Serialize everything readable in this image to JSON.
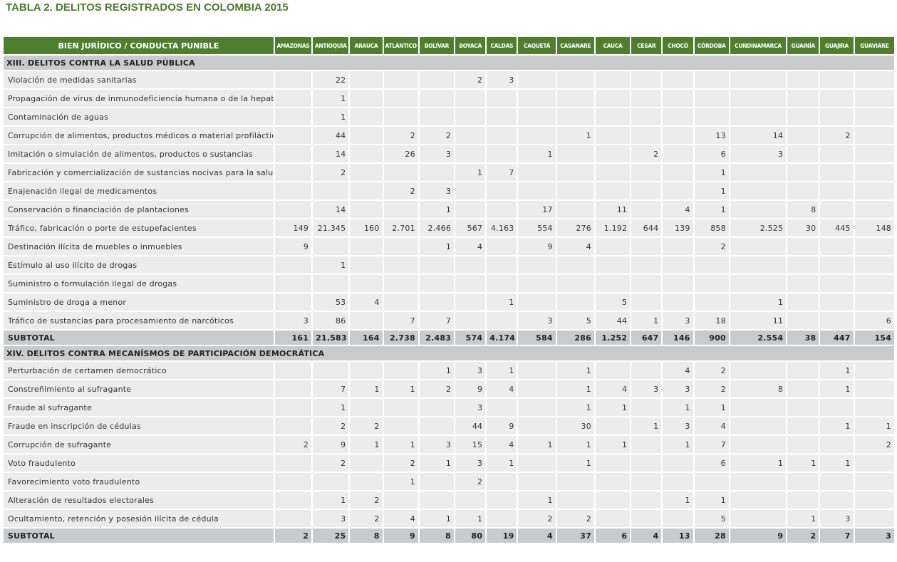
{
  "title": {
    "label": "TABLA 2.",
    "text": "DELITOS REGISTRADOS EN COLOMBIA 2015"
  },
  "table": {
    "header": [
      "BIEN JURÍDICO / CONDUCTA PUNIBLE",
      "AMAZONAS",
      "ANTIOQUIA",
      "ARAUCA",
      "ATLÁNTICO",
      "BOLÍVAR",
      "BOYACÁ",
      "CALDAS",
      "CAQUETÁ",
      "CASANARE",
      "CAUCA",
      "CESAR",
      "CHOCÓ",
      "CÓRDOBA",
      "CUNDINAMARCA",
      "GUAINÍA",
      "GUAJIRA",
      "GUAVIARE"
    ],
    "sections": [
      {
        "title": "XIII. DELITOS CONTRA LA SALUD PÚBLICA",
        "rows": [
          {
            "label": "Violación de medidas sanitarias",
            "values": [
              null,
              "22",
              null,
              null,
              null,
              "2",
              "3",
              null,
              null,
              null,
              null,
              null,
              null,
              null,
              null,
              null,
              null
            ]
          },
          {
            "label": "Propagación de virus de inmunodeficiencia humana o de la hepatitis B",
            "values": [
              null,
              "1",
              null,
              null,
              null,
              null,
              null,
              null,
              null,
              null,
              null,
              null,
              null,
              null,
              null,
              null,
              null
            ]
          },
          {
            "label": "Contaminación de aguas",
            "values": [
              null,
              "1",
              null,
              null,
              null,
              null,
              null,
              null,
              null,
              null,
              null,
              null,
              null,
              null,
              null,
              null,
              null
            ]
          },
          {
            "label": "Corrupción de alimentos, productos médicos o material profiláctico",
            "values": [
              null,
              "44",
              null,
              "2",
              "2",
              null,
              null,
              null,
              "1",
              null,
              null,
              null,
              "13",
              "14",
              null,
              "2",
              null
            ]
          },
          {
            "label": "Imitación o simulación de alimentos, productos o sustancias",
            "values": [
              null,
              "14",
              null,
              "26",
              "3",
              null,
              null,
              "1",
              null,
              null,
              "2",
              null,
              "6",
              "3",
              null,
              null,
              null
            ]
          },
          {
            "label": "Fabricación y comercialización de sustancias nocivas para la salud",
            "values": [
              null,
              "2",
              null,
              null,
              null,
              "1",
              "7",
              null,
              null,
              null,
              null,
              null,
              "1",
              null,
              null,
              null,
              null
            ]
          },
          {
            "label": "Enajenación ilegal de medicamentos",
            "values": [
              null,
              null,
              null,
              "2",
              "3",
              null,
              null,
              null,
              null,
              null,
              null,
              null,
              "1",
              null,
              null,
              null,
              null
            ]
          },
          {
            "label": "Conservación o financiación de plantaciones",
            "values": [
              null,
              "14",
              null,
              null,
              "1",
              null,
              null,
              "17",
              null,
              "11",
              null,
              "4",
              "1",
              null,
              "8",
              null,
              null
            ]
          },
          {
            "label": "Tráfico, fabricación o porte de estupefacientes",
            "values": [
              "149",
              "21.345",
              "160",
              "2.701",
              "2.466",
              "567",
              "4.163",
              "554",
              "276",
              "1.192",
              "644",
              "139",
              "858",
              "2.525",
              "30",
              "445",
              "148"
            ]
          },
          {
            "label": "Destinación ilícita de muebles o inmuebles",
            "values": [
              "9",
              null,
              null,
              null,
              "1",
              "4",
              null,
              "9",
              "4",
              null,
              null,
              null,
              "2",
              null,
              null,
              null,
              null
            ]
          },
          {
            "label": "Estímulo al uso ilícito de drogas",
            "values": [
              null,
              "1",
              null,
              null,
              null,
              null,
              null,
              null,
              null,
              null,
              null,
              null,
              null,
              null,
              null,
              null,
              null
            ]
          },
          {
            "label": "Suministro o formulación ilegal de drogas",
            "values": [
              null,
              null,
              null,
              null,
              null,
              null,
              null,
              null,
              null,
              null,
              null,
              null,
              null,
              null,
              null,
              null,
              null
            ]
          },
          {
            "label": "Suministro de droga a menor",
            "values": [
              null,
              "53",
              "4",
              null,
              null,
              null,
              "1",
              null,
              null,
              "5",
              null,
              null,
              null,
              "1",
              null,
              null,
              null
            ]
          },
          {
            "label": "Tráfico de sustancias para procesamiento de narcóticos",
            "values": [
              "3",
              "86",
              null,
              "7",
              "7",
              null,
              null,
              "3",
              "5",
              "44",
              "1",
              "3",
              "18",
              "11",
              null,
              null,
              "6"
            ]
          }
        ],
        "subtotal": {
          "label": "SUBTOTAL",
          "values": [
            "161",
            "21.583",
            "164",
            "2.738",
            "2.483",
            "574",
            "4.174",
            "584",
            "286",
            "1.252",
            "647",
            "146",
            "900",
            "2.554",
            "38",
            "447",
            "154"
          ]
        }
      },
      {
        "title": "XIV. DELITOS CONTRA MECANÍSMOS DE PARTICIPACIÓN DEMOCRÁTICA",
        "rows": [
          {
            "label": "Perturbación de certamen democrático",
            "values": [
              null,
              null,
              null,
              null,
              "1",
              "3",
              "1",
              null,
              "1",
              null,
              null,
              "4",
              "2",
              null,
              null,
              "1",
              null
            ]
          },
          {
            "label": "Constreñimiento al sufragante",
            "values": [
              null,
              "7",
              "1",
              "1",
              "2",
              "9",
              "4",
              null,
              "1",
              "4",
              "3",
              "3",
              "2",
              "8",
              null,
              "1",
              null
            ]
          },
          {
            "label": "Fraude al sufragante",
            "values": [
              null,
              "1",
              null,
              null,
              null,
              "3",
              null,
              null,
              "1",
              "1",
              null,
              "1",
              "1",
              null,
              null,
              null,
              null
            ]
          },
          {
            "label": "Fraude en inscripción de cédulas",
            "values": [
              null,
              "2",
              "2",
              null,
              null,
              "44",
              "9",
              null,
              "30",
              null,
              "1",
              "3",
              "4",
              null,
              null,
              "1",
              "1"
            ]
          },
          {
            "label": "Corrupción de sufragante",
            "values": [
              "2",
              "9",
              "1",
              "1",
              "3",
              "15",
              "4",
              "1",
              "1",
              "1",
              null,
              "1",
              "7",
              null,
              null,
              null,
              "2"
            ]
          },
          {
            "label": "Voto fraudulento",
            "values": [
              null,
              "2",
              null,
              "2",
              "1",
              "3",
              "1",
              null,
              "1",
              null,
              null,
              null,
              "6",
              "1",
              "1",
              "1",
              null
            ]
          },
          {
            "label": "Favorecimiento voto fraudulento",
            "values": [
              null,
              null,
              null,
              "1",
              null,
              "2",
              null,
              null,
              null,
              null,
              null,
              null,
              null,
              null,
              null,
              null,
              null
            ]
          },
          {
            "label": "Alteración de resultados electorales",
            "values": [
              null,
              "1",
              "2",
              null,
              null,
              null,
              null,
              "1",
              null,
              null,
              null,
              "1",
              "1",
              null,
              null,
              null,
              null
            ]
          },
          {
            "label": "Ocultamiento, retención y posesión ilícita de cédula",
            "values": [
              null,
              "3",
              "2",
              "4",
              "1",
              "1",
              null,
              "2",
              "2",
              null,
              null,
              null,
              "5",
              null,
              "1",
              "3",
              null
            ]
          }
        ],
        "subtotal": {
          "label": "SUBTOTAL",
          "values": [
            "2",
            "25",
            "8",
            "9",
            "8",
            "80",
            "19",
            "4",
            "37",
            "6",
            "4",
            "13",
            "28",
            "9",
            "2",
            "7",
            "3"
          ]
        }
      }
    ]
  }
}
